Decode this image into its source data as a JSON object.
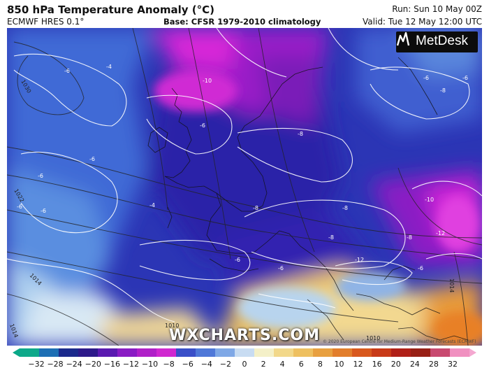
{
  "header": {
    "title": "850 hPa Temperature Anomaly (°C)",
    "model": "ECMWF HRES 0.1°",
    "base": "Base: CFSR 1979-2010 climatology",
    "run": "Run: Sun 10 May 00Z",
    "valid": "Valid: Tue 12 May 12:00 UTC"
  },
  "logo": {
    "text": "MetDesk",
    "icon": "metdesk-logo-icon"
  },
  "watermark": "WXCHARTS.COM",
  "copyright": "© 2020 European Centre for Medium-Range Weather Forecasts (ECMWF)",
  "colorbar": {
    "ticks": [
      "−32",
      "−28",
      "−24",
      "−20",
      "−16",
      "−12",
      "−10",
      "−8",
      "−6",
      "−4",
      "−2",
      "0",
      "2",
      "4",
      "6",
      "8",
      "10",
      "12",
      "16",
      "20",
      "24",
      "28",
      "32"
    ],
    "colors": [
      "#0fa98a",
      "#1d6fb4",
      "#1b2a8c",
      "#2d1a8a",
      "#5a1ab0",
      "#8a1cc4",
      "#b020c8",
      "#d028d0",
      "#3a4fc8",
      "#4f78d8",
      "#7fa8e6",
      "#c8dcf2",
      "#f4f0c8",
      "#f2d88a",
      "#eec060",
      "#e8a040",
      "#e27e2c",
      "#d8581e",
      "#c83a18",
      "#b02018",
      "#982016",
      "#c84a70",
      "#f090c0"
    ]
  },
  "contour_labels": {
    "isotherms": [
      "-6",
      "-4",
      "-6",
      "-6",
      "-6",
      "-6",
      "-4",
      "-6",
      "-10",
      "-6",
      "-6",
      "-8",
      "-8",
      "-8",
      "-8",
      "-8",
      "-8",
      "-10",
      "-12",
      "-12",
      "-6",
      "-6",
      "-6"
    ],
    "isobars": [
      "1030",
      "1022",
      "1014",
      "1014",
      "1010",
      "1014",
      "1010"
    ]
  }
}
